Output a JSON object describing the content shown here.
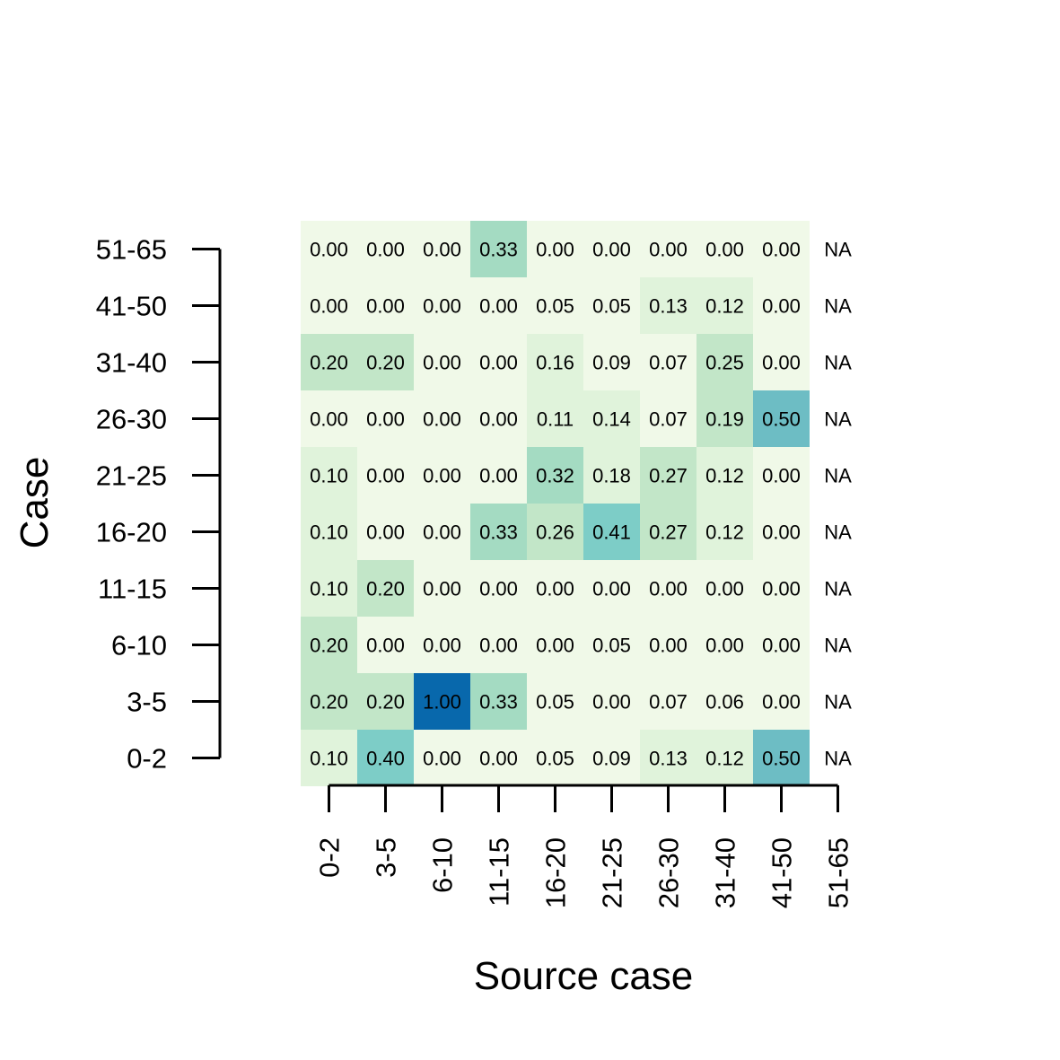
{
  "chart_data": {
    "type": "heatmap",
    "title": "",
    "xlabel": "Source case",
    "ylabel": "Case",
    "x_categories": [
      "0-2",
      "3-5",
      "6-10",
      "11-15",
      "16-20",
      "21-25",
      "26-30",
      "31-40",
      "41-50",
      "51-65"
    ],
    "y_categories": [
      "0-2",
      "3-5",
      "6-10",
      "11-15",
      "16-20",
      "21-25",
      "26-30",
      "31-40",
      "41-50",
      "51-65"
    ],
    "values": [
      [
        0.1,
        0.4,
        0.0,
        0.0,
        0.05,
        0.09,
        0.13,
        0.12,
        0.5,
        null
      ],
      [
        0.2,
        0.2,
        1.0,
        0.33,
        0.05,
        0.0,
        0.07,
        0.06,
        0.0,
        null
      ],
      [
        0.2,
        0.0,
        0.0,
        0.0,
        0.0,
        0.05,
        0.0,
        0.0,
        0.0,
        null
      ],
      [
        0.1,
        0.2,
        0.0,
        0.0,
        0.0,
        0.0,
        0.0,
        0.0,
        0.0,
        null
      ],
      [
        0.1,
        0.0,
        0.0,
        0.33,
        0.26,
        0.41,
        0.27,
        0.12,
        0.0,
        null
      ],
      [
        0.1,
        0.0,
        0.0,
        0.0,
        0.32,
        0.18,
        0.27,
        0.12,
        0.0,
        null
      ],
      [
        0.0,
        0.0,
        0.0,
        0.0,
        0.11,
        0.14,
        0.07,
        0.19,
        0.5,
        null
      ],
      [
        0.2,
        0.2,
        0.0,
        0.0,
        0.16,
        0.09,
        0.07,
        0.25,
        0.0,
        null
      ],
      [
        0.0,
        0.0,
        0.0,
        0.0,
        0.05,
        0.05,
        0.13,
        0.12,
        0.0,
        null
      ],
      [
        0.0,
        0.0,
        0.0,
        0.33,
        0.0,
        0.0,
        0.0,
        0.0,
        0.0,
        null
      ]
    ],
    "na_label": "NA",
    "color_scale": {
      "low": "#f0f9e8",
      "mid_low": "#e0f3db",
      "mid": "#c2e6c8",
      "mid_high": "#a4dbc2",
      "high_mid": "#7dcdc7",
      "high": "#6dbdc4",
      "max": "#0868ac"
    }
  }
}
